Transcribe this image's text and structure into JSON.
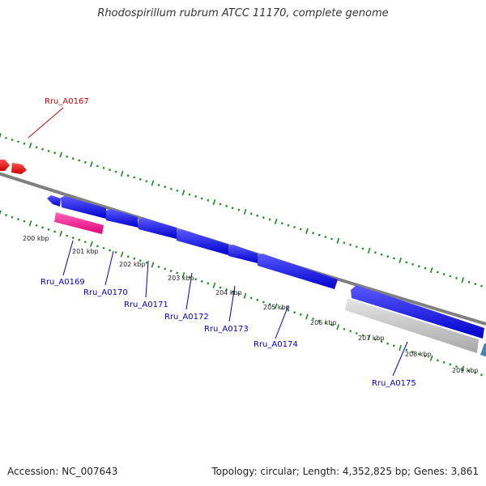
{
  "title": "Rhodospirillum rubrum ATCC 11170, complete genome",
  "footer": {
    "accession": "Accession: NC_007643",
    "summary": "Topology: circular; Length: 4,352,825 bp; Genes: 3,861"
  },
  "colors": {
    "backbone": "#808080",
    "tick": "#1a8a1a",
    "red_gene": "#ff0000",
    "blue_gene": "#0000ff",
    "pink_gene": "#ff1a8c",
    "grey_gene": "#c8c8c8",
    "steel_gene": "#4682b4",
    "label_red": "#cc0000",
    "label_blue": "#0000cc"
  },
  "scale_labels": [
    "200 kbp",
    "201 kbp",
    "202 kbp",
    "203 kbp",
    "204 kbp",
    "205 kbp",
    "206 kbp",
    "207 kbp",
    "208 kbp",
    "209 kbp"
  ],
  "gene_labels": [
    "Rru_A0167",
    "Rru_A0169",
    "Rru_A0170",
    "Rru_A0171",
    "Rru_A0172",
    "Rru_A0173",
    "Rru_A0174",
    "Rru_A0175"
  ]
}
